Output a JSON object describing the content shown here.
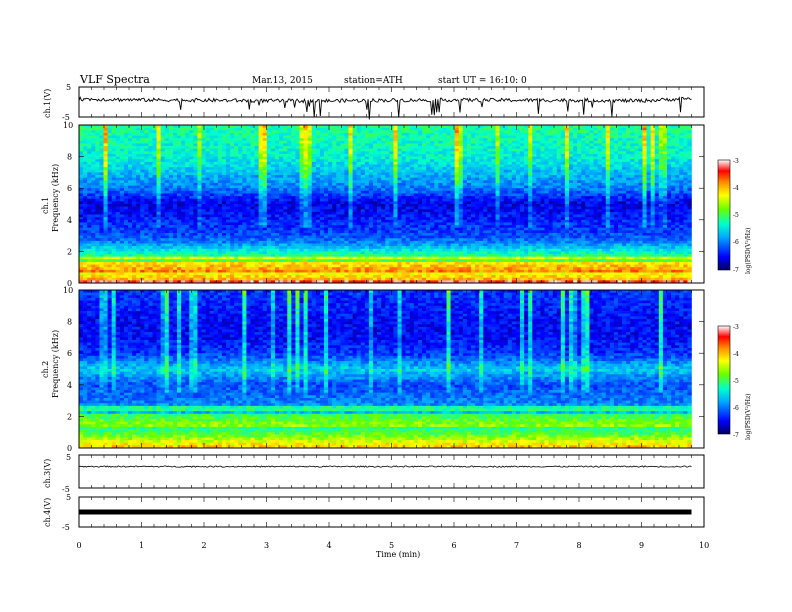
{
  "header": {
    "title": "VLF  Spectra",
    "date": "Mar.13, 2015",
    "station": "station=ATH",
    "start": "start  UT  =   16:10: 0"
  },
  "chart_data": [
    {
      "type": "line",
      "panel": "ch1-waveform",
      "ylabel": "ch.1(V)",
      "ylim": [
        -5,
        5
      ],
      "yticks": [
        "5",
        "-5"
      ],
      "xlim": [
        0,
        10
      ],
      "x": [
        0,
        1,
        2,
        3,
        4,
        5,
        6,
        7,
        8,
        9,
        9.8
      ],
      "y": [
        1.0,
        0.7,
        0.6,
        0.4,
        0.4,
        0.6,
        0.7,
        0.6,
        0.6,
        0.4,
        1.2
      ],
      "note_color": "#000000"
    },
    {
      "type": "heatmap",
      "panel": "ch1-spectrogram",
      "ylabel": "ch.1\nFrequency  (kHz)",
      "ylabel_lines": [
        "ch.1",
        "Frequency  (kHz)"
      ],
      "ylim": [
        0,
        10
      ],
      "yticks": [
        "10",
        "8",
        "6",
        "4",
        "2",
        "0"
      ],
      "xlim": [
        0,
        9.8
      ],
      "colorbar": {
        "label": "log(PSD(V²/Hz)",
        "range": [
          -7,
          -3
        ],
        "ticks": [
          "-3",
          "-4",
          "-5",
          "-6",
          "-7"
        ]
      },
      "freq_profile_khz": [
        0,
        0.5,
        1,
        1.5,
        2,
        2.5,
        3,
        3.5,
        4,
        4.5,
        5,
        5.5,
        6,
        7,
        8,
        9,
        10
      ],
      "psd_profile": [
        -3.8,
        -4.2,
        -4.6,
        -5.0,
        -5.4,
        -5.9,
        -6.2,
        -6.3,
        -6.4,
        -6.5,
        -6.6,
        -6.3,
        -6.0,
        -5.7,
        -5.4,
        -5.3,
        -5.2
      ]
    },
    {
      "type": "heatmap",
      "panel": "ch2-spectrogram",
      "ylabel": "ch.2\nFrequency  (kHz)",
      "ylabel_lines": [
        "ch.2",
        "Frequency  (kHz)"
      ],
      "ylim": [
        0,
        10
      ],
      "yticks": [
        "10",
        "8",
        "6",
        "4",
        "2",
        "0"
      ],
      "xlim": [
        0,
        9.8
      ],
      "colorbar": {
        "label": "log(PSD(V²/Hz)",
        "range": [
          -7,
          -3
        ],
        "ticks": [
          "-3",
          "-4",
          "-5",
          "-6",
          "-7"
        ]
      },
      "freq_profile_khz": [
        0,
        0.5,
        1,
        1.5,
        2,
        2.5,
        3,
        3.5,
        4,
        4.5,
        5,
        5.5,
        6,
        7,
        8,
        9,
        10
      ],
      "psd_profile": [
        -4.0,
        -4.5,
        -5.0,
        -5.3,
        -5.6,
        -5.8,
        -6.0,
        -6.1,
        -6.2,
        -5.9,
        -5.6,
        -6.0,
        -6.3,
        -6.5,
        -6.5,
        -6.4,
        -6.3
      ]
    },
    {
      "type": "line",
      "panel": "ch3-waveform",
      "ylabel": "ch.3(V)",
      "ylim": [
        -5,
        5
      ],
      "yticks": [
        "5",
        "-5"
      ],
      "xlim": [
        0,
        10
      ],
      "x": [
        0,
        9.8
      ],
      "y": [
        1.5,
        1.5
      ]
    },
    {
      "type": "line",
      "panel": "ch4-waveform",
      "ylabel": "ch.4(V)",
      "ylim": [
        -5,
        5
      ],
      "yticks": [
        "5",
        "-5"
      ],
      "xlim": [
        0,
        10
      ],
      "x": [
        0,
        9.8
      ],
      "y": [
        0,
        0
      ]
    }
  ],
  "xaxis": {
    "label": "Time  (min)",
    "ticks": [
      "0",
      "1",
      "2",
      "3",
      "4",
      "5",
      "6",
      "7",
      "8",
      "9",
      "10"
    ],
    "range": [
      0,
      10
    ]
  },
  "colors": {
    "background": "#ffffff",
    "axis": "#000000",
    "colormap": [
      "#000080",
      "#0000ff",
      "#00aaff",
      "#00ffcc",
      "#66ff00",
      "#ffff00",
      "#ff8800",
      "#ff0000",
      "#ffffff"
    ]
  }
}
